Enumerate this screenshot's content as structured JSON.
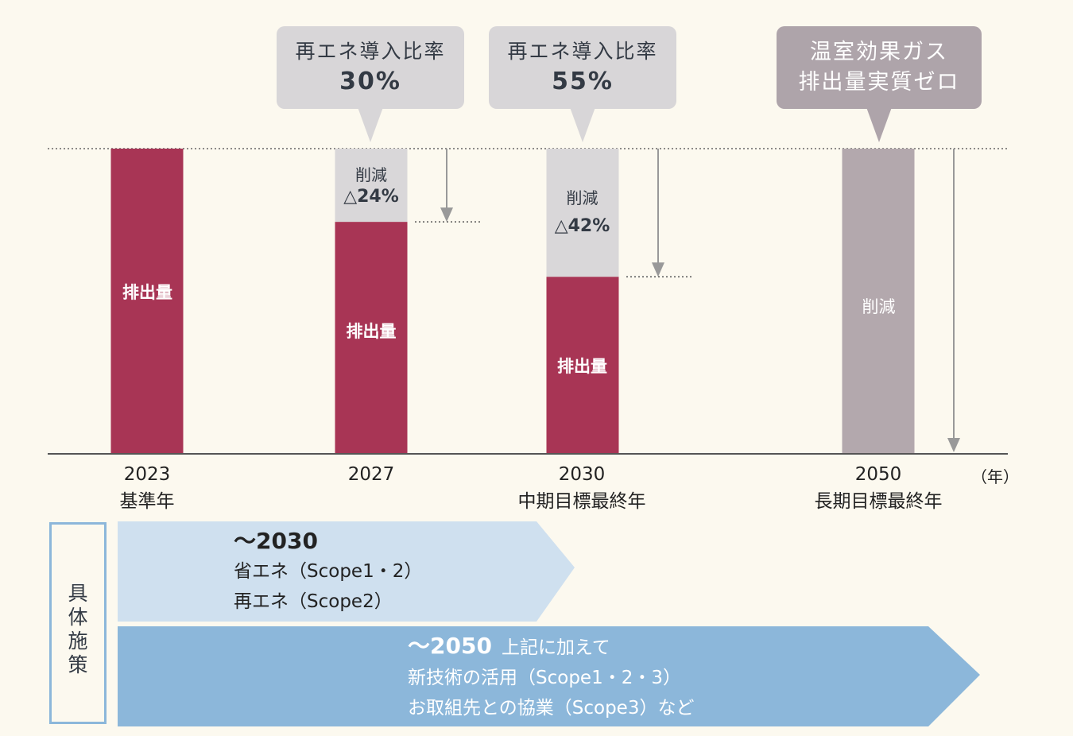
{
  "chart_data": {
    "type": "bar",
    "title": "",
    "xlabel": "",
    "ylabel": "",
    "ylim": [
      0,
      100
    ],
    "x_unit": "（年）",
    "categories": [
      "2023",
      "2027",
      "2030",
      "2050"
    ],
    "category_notes": [
      "基準年",
      "",
      "中期目標最終年",
      "長期目標最終年"
    ],
    "series": [
      {
        "name": "排出量",
        "values": [
          100,
          76,
          58,
          0
        ],
        "color": "#a83555"
      },
      {
        "name": "削減",
        "values": [
          0,
          24,
          42,
          100
        ],
        "color": "#d9d7d9"
      }
    ],
    "bar_labels": {
      "emission": "排出量",
      "reduction": "削減",
      "reduction_pct": [
        "",
        "△24%",
        "△42%",
        ""
      ]
    },
    "callouts": [
      {
        "category": "2027",
        "line1": "再エネ導入比率",
        "line2": "30%"
      },
      {
        "category": "2030",
        "line1": "再エネ導入比率",
        "line2": "55%"
      },
      {
        "category": "2050",
        "line1": "温室効果ガス",
        "line2": "排出量実質ゼロ"
      }
    ],
    "colors": {
      "final_bar": "#b3a8ad",
      "axis": "#555555",
      "arrow": "#999999"
    }
  },
  "measures": {
    "side_label": "具体施策",
    "band1": {
      "period": "～2030",
      "lines": [
        "省エネ（Scope1・2）",
        "再エネ（Scope2）"
      ],
      "color": "#cfe0ef"
    },
    "band2": {
      "period": "～2050",
      "period_sub": "上記に加えて",
      "lines": [
        "新技術の活用（Scope1・2・3）",
        "お取組先との協業（Scope3）など"
      ],
      "color": "#8cb7da"
    }
  }
}
